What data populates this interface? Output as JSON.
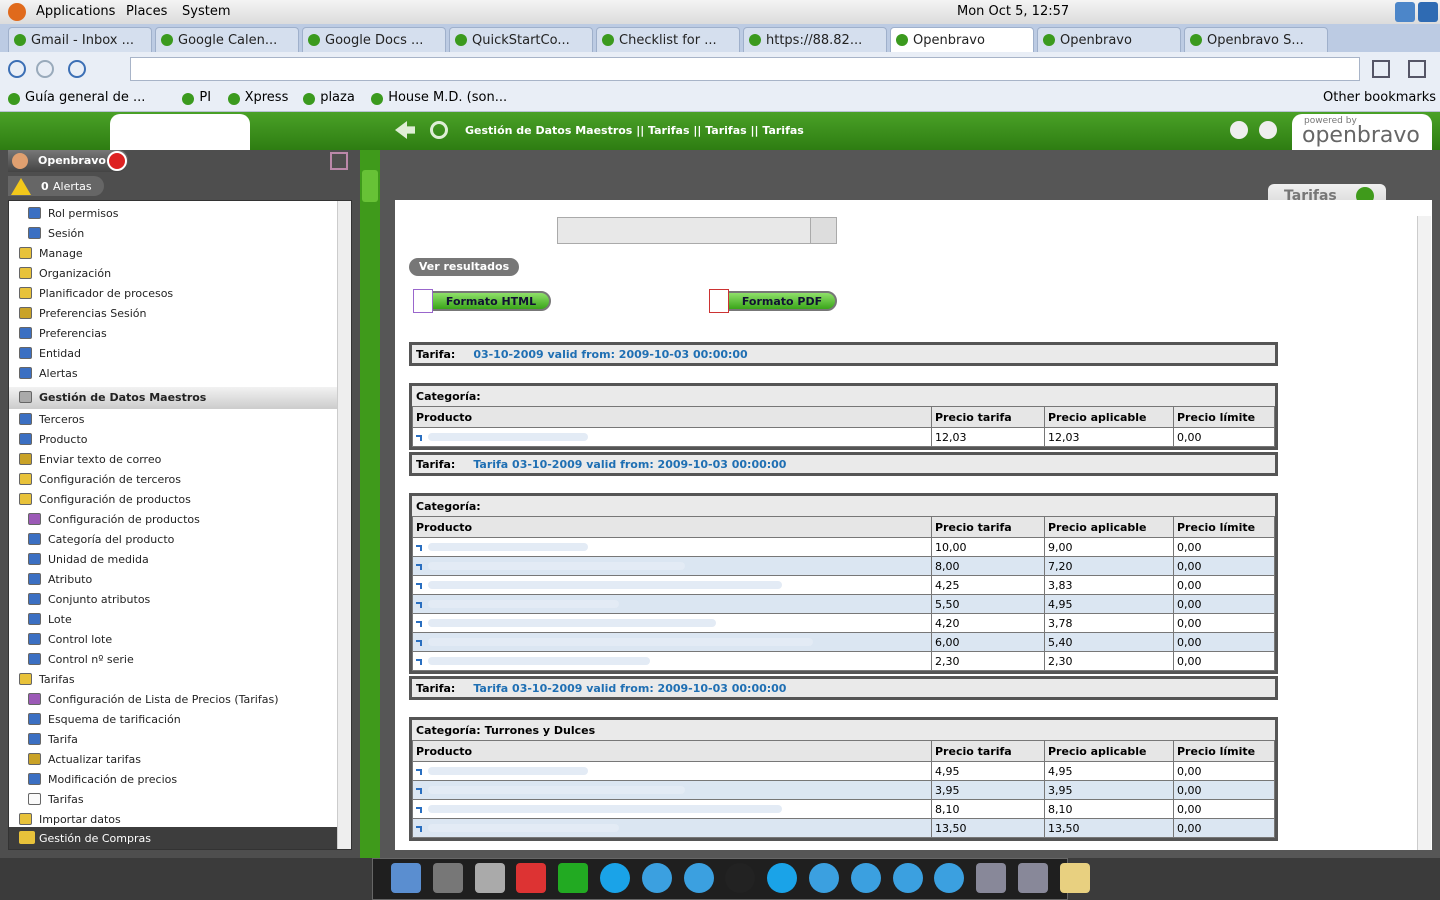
{
  "top_panel": {
    "menus": [
      "Applications",
      "Places",
      "System"
    ],
    "clock": "Mon Oct  5, 12:57"
  },
  "browser": {
    "tabs": [
      "Gmail - Inbox ...",
      "Google Calen...",
      "Google Docs ...",
      "QuickStartCo...",
      "Checklist for ...",
      "https://88.82...",
      "Openbravo",
      "Openbravo",
      "Openbravo S..."
    ],
    "active_tab": 6,
    "bookmarks": [
      "Guía general de ...",
      "PI",
      "Xpress",
      "plaza",
      "House M.D. (son..."
    ],
    "other_bookmarks": "Other bookmarks"
  },
  "app": {
    "breadcrumb": "Gestión de Datos Maestros || Tarifas || Tarifas  ||  Tarifas",
    "powered_by": "powered by",
    "logo": "openbravo",
    "user": "Openbravo",
    "alert_count": "0",
    "alerts_label": "Alertas",
    "menu": [
      {
        "label": "Rol permisos",
        "icon": "edit",
        "depth": 1
      },
      {
        "label": "Sesión",
        "icon": "edit",
        "depth": 1
      },
      {
        "label": "Manage",
        "icon": "folder",
        "depth": 0
      },
      {
        "label": "Organización",
        "icon": "folder",
        "depth": 0
      },
      {
        "label": "Planificador de procesos",
        "icon": "folder",
        "depth": 0
      },
      {
        "label": "Preferencias Sesión",
        "icon": "process",
        "depth": 0
      },
      {
        "label": "Preferencias",
        "icon": "edit",
        "depth": 0
      },
      {
        "label": "Entidad",
        "icon": "edit",
        "depth": 0
      },
      {
        "label": "Alertas",
        "icon": "edit",
        "depth": 0
      },
      {
        "label": "Gestión de Datos Maestros",
        "icon": "section",
        "depth": 0
      },
      {
        "label": "Terceros",
        "icon": "edit",
        "depth": 0
      },
      {
        "label": "Producto",
        "icon": "edit",
        "depth": 0
      },
      {
        "label": "Enviar texto de correo",
        "icon": "process",
        "depth": 0
      },
      {
        "label": "Configuración de terceros",
        "icon": "folder",
        "depth": 0
      },
      {
        "label": "Configuración de productos",
        "icon": "folder",
        "depth": 0
      },
      {
        "label": "Configuración de productos",
        "icon": "tree",
        "depth": 1
      },
      {
        "label": "Categoría del producto",
        "icon": "edit",
        "depth": 1
      },
      {
        "label": "Unidad de medida",
        "icon": "edit",
        "depth": 1
      },
      {
        "label": "Atributo",
        "icon": "edit",
        "depth": 1
      },
      {
        "label": "Conjunto atributos",
        "icon": "edit",
        "depth": 1
      },
      {
        "label": "Lote",
        "icon": "edit",
        "depth": 1
      },
      {
        "label": "Control lote",
        "icon": "edit",
        "depth": 1
      },
      {
        "label": "Control nº serie",
        "icon": "edit",
        "depth": 1
      },
      {
        "label": "Tarifas",
        "icon": "folder",
        "depth": 0
      },
      {
        "label": "Configuración de Lista de Precios (Tarifas)",
        "icon": "tree",
        "depth": 1
      },
      {
        "label": "Esquema de tarificación",
        "icon": "edit",
        "depth": 1
      },
      {
        "label": "Tarifa",
        "icon": "edit",
        "depth": 1
      },
      {
        "label": "Actualizar tarifas",
        "icon": "process",
        "depth": 1
      },
      {
        "label": "Modificación de precios",
        "icon": "edit",
        "depth": 1
      },
      {
        "label": "Tarifas",
        "icon": "doc",
        "depth": 1
      },
      {
        "label": "Importar datos",
        "icon": "folder",
        "depth": 0
      }
    ],
    "menu_footer": "Gestión de Compras"
  },
  "report": {
    "tab_label": "Tarifas",
    "view_button": "Ver resultados",
    "html_button": "Formato HTML",
    "pdf_button": "Formato PDF",
    "tarifa_label": "Tarifa:",
    "categoria_label": "Categoría:",
    "columns": [
      "Producto",
      "Precio tarifa",
      "Precio aplicable",
      "Precio límite"
    ],
    "blocks": [
      {
        "type": "tarifa",
        "text": "03-10-2009 valid from: 2009-10-03 00:00:00"
      },
      {
        "type": "categoria",
        "rows": [
          [
            "12,03",
            "12,03",
            "0,00"
          ]
        ]
      },
      {
        "type": "tarifa",
        "text": "Tarifa 03-10-2009 valid from: 2009-10-03 00:00:00"
      },
      {
        "type": "categoria",
        "rows": [
          [
            "10,00",
            "9,00",
            "0,00"
          ],
          [
            "8,00",
            "7,20",
            "0,00"
          ],
          [
            "4,25",
            "3,83",
            "0,00"
          ],
          [
            "5,50",
            "4,95",
            "0,00"
          ],
          [
            "4,20",
            "3,78",
            "0,00"
          ],
          [
            "6,00",
            "5,40",
            "0,00"
          ],
          [
            "2,30",
            "2,30",
            "0,00"
          ]
        ]
      },
      {
        "type": "tarifa",
        "text": "Tarifa 03-10-2009 valid from: 2009-10-03 00:00:00"
      },
      {
        "type": "categoria",
        "name": "Turrones y Dulces",
        "rows": [
          [
            "4,95",
            "4,95",
            "0,00"
          ],
          [
            "3,95",
            "3,95",
            "0,00"
          ],
          [
            "8,10",
            "8,10",
            "0,00"
          ],
          [
            "13,50",
            "13,50",
            "0,00"
          ]
        ]
      }
    ]
  }
}
